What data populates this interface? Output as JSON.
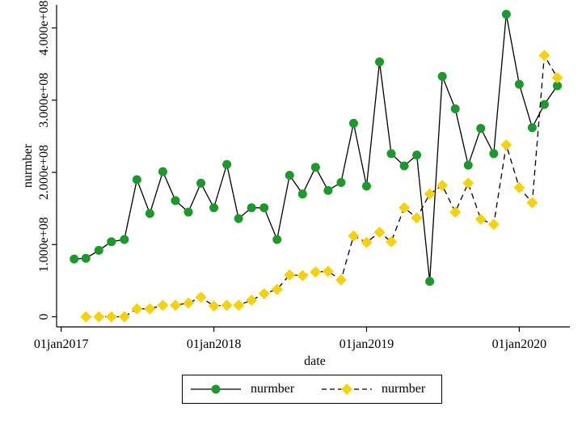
{
  "chart_data": {
    "type": "line",
    "xlabel": "date",
    "ylabel": "nurmber",
    "x": [
      "2017-02",
      "2017-03",
      "2017-04",
      "2017-05",
      "2017-06",
      "2017-07",
      "2017-08",
      "2017-09",
      "2017-10",
      "2017-11",
      "2017-12",
      "2018-01",
      "2018-02",
      "2018-03",
      "2018-04",
      "2018-05",
      "2018-06",
      "2018-07",
      "2018-08",
      "2018-09",
      "2018-10",
      "2018-11",
      "2018-12",
      "2019-01",
      "2019-02",
      "2019-03",
      "2019-04",
      "2019-05",
      "2019-06",
      "2019-07",
      "2019-08",
      "2019-09",
      "2019-10",
      "2019-11",
      "2019-12",
      "2020-01",
      "2020-02",
      "2020-03",
      "2020-04"
    ],
    "x_ticks": [
      {
        "date": "2017-01",
        "label": "01jan2017"
      },
      {
        "date": "2018-01",
        "label": "01jan2018"
      },
      {
        "date": "2019-01",
        "label": "01jan2019"
      },
      {
        "date": "2020-01",
        "label": "01jan2020"
      }
    ],
    "xlim": [
      "2016-12-21",
      "2020-05-01"
    ],
    "y_ticks": [
      {
        "value": 0,
        "label": "0"
      },
      {
        "value": 100000000,
        "label": "1.000e+08"
      },
      {
        "value": 200000000,
        "label": "2.000e+08"
      },
      {
        "value": 300000000,
        "label": "3.000e+08"
      },
      {
        "value": 400000000,
        "label": "4.000e+08"
      }
    ],
    "ylim": [
      -14000000,
      432000000
    ],
    "grid": false,
    "legend_position": "bottom",
    "series": [
      {
        "name": "nurmber",
        "color": "#1a9a2a",
        "marker": "circle",
        "line_style": "solid",
        "values": [
          80000000,
          81000000,
          92000000,
          104000000,
          107000000,
          190000000,
          143000000,
          201000000,
          161000000,
          145000000,
          185000000,
          151000000,
          211000000,
          136000000,
          151000000,
          151000000,
          107000000,
          196000000,
          170000000,
          207000000,
          175000000,
          186000000,
          268000000,
          181000000,
          353000000,
          226000000,
          209000000,
          224000000,
          49000000,
          333000000,
          288000000,
          210000000,
          261000000,
          226000000,
          419000000,
          322000000,
          262000000,
          294000000,
          320000000
        ]
      },
      {
        "name": "nurmber",
        "color": "#f7d20a",
        "marker": "diamond",
        "line_style": "dashed",
        "values": [
          null,
          0,
          0,
          0,
          0,
          11000000,
          11000000,
          16000000,
          16000000,
          19000000,
          27000000,
          15000000,
          16000000,
          16000000,
          23000000,
          32000000,
          38000000,
          58000000,
          57000000,
          62000000,
          63000000,
          51000000,
          112000000,
          103000000,
          117000000,
          104000000,
          151000000,
          137000000,
          170000000,
          182000000,
          145000000,
          185000000,
          135000000,
          128000000,
          238000000,
          179000000,
          158000000,
          362000000,
          331000000
        ]
      }
    ]
  },
  "legend": {
    "items": [
      {
        "label": "nurmber"
      },
      {
        "label": "nurmber"
      }
    ]
  }
}
